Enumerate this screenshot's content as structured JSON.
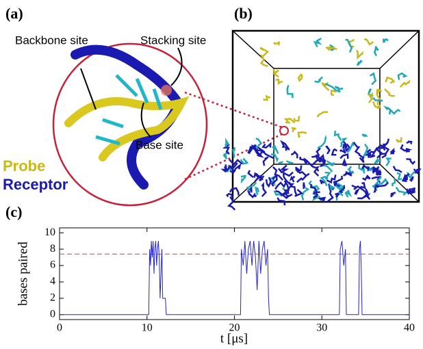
{
  "panels": {
    "a": {
      "label": "(a)",
      "backbone": "Backbone site",
      "stacking": "Stacking site",
      "base": "Base site",
      "probe": "Probe",
      "receptor": "Receptor"
    },
    "b": {
      "label": "(b)"
    }
  },
  "chart_data": {
    "type": "line",
    "panel_label": "(c)",
    "xlabel": "t [μs]",
    "ylabel": "bases paired",
    "xlim": [
      0,
      40
    ],
    "xticks": [
      0,
      10,
      20,
      30,
      40
    ],
    "ylim": [
      -0.6,
      10.6
    ],
    "yticks": [
      0,
      2,
      4,
      6,
      8,
      10
    ],
    "color": "#2424d0",
    "reference_line": {
      "value": 7.4,
      "color": "#e03a3a"
    },
    "x": [
      0,
      10.2,
      10.3,
      10.4,
      10.5,
      10.6,
      10.7,
      10.8,
      10.9,
      11.0,
      11.1,
      11.2,
      11.3,
      11.4,
      11.5,
      11.7,
      11.8,
      12.1,
      12.2,
      20.7,
      20.8,
      21.0,
      21.2,
      21.4,
      21.6,
      21.8,
      22.0,
      22.2,
      22.4,
      22.6,
      22.8,
      23.0,
      23.2,
      23.4,
      23.6,
      23.8,
      23.9,
      24.0,
      32.0,
      32.1,
      32.3,
      32.5,
      32.7,
      32.8,
      34.2,
      34.3,
      34.4,
      34.5,
      34.6,
      40
    ],
    "values": [
      0,
      0,
      8,
      6,
      9,
      7,
      9,
      5,
      8,
      9,
      6,
      8,
      9,
      7,
      2,
      8,
      2,
      2,
      0,
      0,
      8,
      6,
      9,
      5,
      8,
      9,
      6,
      9,
      7,
      3,
      9,
      5,
      8,
      9,
      6,
      8,
      2,
      0,
      0,
      8,
      9,
      6,
      8,
      0,
      0,
      8,
      9,
      6,
      0,
      0
    ]
  }
}
